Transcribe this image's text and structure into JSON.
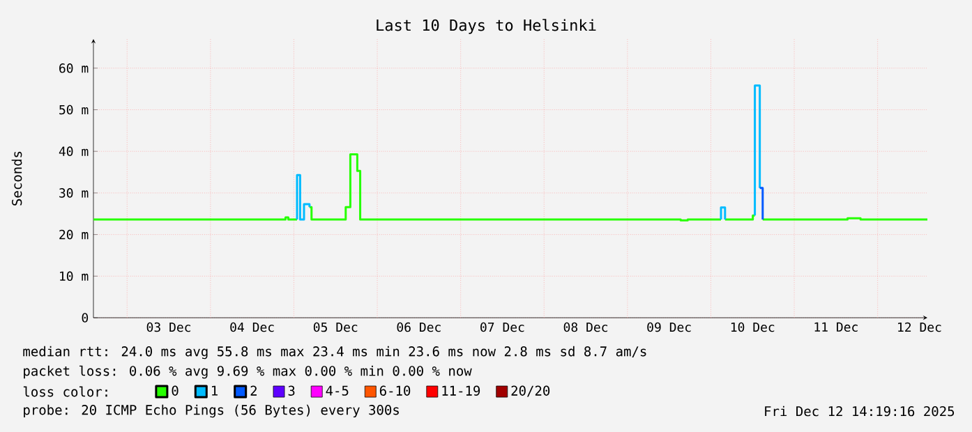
{
  "chart_data": {
    "type": "line",
    "title": "Last 10 Days to Helsinki",
    "ylabel": "Seconds",
    "legend_title": "loss color:",
    "x": [
      "2025-12-02T14:19",
      "2025-12-04T21:36",
      "2025-12-04T21:36",
      "2025-12-04T22:24",
      "2025-12-04T22:24",
      "2025-12-05T00:55",
      "2025-12-05T00:55",
      "2025-12-05T01:48",
      "2025-12-05T01:48",
      "2025-12-05T02:55",
      "2025-12-05T02:55",
      "2025-12-05T04:30",
      "2025-12-05T04:30",
      "2025-12-05T05:05",
      "2025-12-05T05:05",
      "2025-12-05T14:55",
      "2025-12-05T14:55",
      "2025-12-05T16:15",
      "2025-12-05T16:15",
      "2025-12-05T18:15",
      "2025-12-05T18:15",
      "2025-12-05T19:05",
      "2025-12-05T19:05",
      "2025-12-09T15:20",
      "2025-12-09T15:20",
      "2025-12-09T17:20",
      "2025-12-09T17:20",
      "2025-12-10T02:55",
      "2025-12-10T02:55",
      "2025-12-10T04:05",
      "2025-12-10T04:05",
      "2025-12-10T12:05",
      "2025-12-10T12:05",
      "2025-12-10T12:40",
      "2025-12-10T12:40",
      "2025-12-10T14:05",
      "2025-12-10T14:05",
      "2025-12-10T14:55",
      "2025-12-10T14:55",
      "2025-12-11T15:20",
      "2025-12-11T15:20",
      "2025-12-11T19:05",
      "2025-12-11T19:05",
      "2025-12-12T14:19"
    ],
    "series": [
      {
        "name": "0",
        "color": "#26ff00",
        "values": [
          23.6,
          23.6,
          24.1,
          24.1,
          23.6,
          23.6,
          null,
          null,
          null,
          null,
          null,
          null,
          26.6,
          26.6,
          23.6,
          23.6,
          26.6,
          26.6,
          39.3,
          39.3,
          35.3,
          35.3,
          23.6,
          23.6,
          23.4,
          23.4,
          23.6,
          23.6,
          null,
          null,
          23.6,
          23.6,
          24.6,
          24.6,
          null,
          null,
          null,
          null,
          23.6,
          23.6,
          23.9,
          23.9,
          23.6,
          23.6
        ]
      },
      {
        "name": "1",
        "color": "#00bbff",
        "values": [
          null,
          null,
          null,
          null,
          null,
          23.6,
          34.3,
          34.3,
          23.6,
          23.6,
          27.3,
          27.3,
          26.6,
          null,
          null,
          null,
          null,
          null,
          null,
          null,
          null,
          null,
          null,
          null,
          null,
          null,
          null,
          23.6,
          26.5,
          26.5,
          23.6,
          null,
          null,
          24.6,
          55.8,
          55.8,
          31.2,
          null,
          null,
          null,
          null,
          null,
          null,
          null
        ]
      },
      {
        "name": "2",
        "color": "#0059ff",
        "values": [
          null,
          null,
          null,
          null,
          null,
          null,
          null,
          null,
          null,
          null,
          null,
          null,
          null,
          null,
          null,
          null,
          null,
          null,
          null,
          null,
          null,
          null,
          null,
          null,
          null,
          null,
          null,
          null,
          null,
          null,
          null,
          null,
          null,
          null,
          null,
          null,
          31.2,
          31.2,
          23.6,
          null,
          null,
          null,
          null,
          null
        ]
      },
      {
        "name": "3",
        "color": "#5e00ff",
        "values": [
          null,
          null,
          null,
          null,
          null,
          null,
          null,
          null,
          null,
          null,
          null,
          null,
          null,
          null,
          null,
          null,
          null,
          null,
          null,
          null,
          null,
          null,
          null,
          null,
          null,
          null,
          null,
          null,
          null,
          null,
          null,
          null,
          null,
          null,
          null,
          null,
          null,
          null,
          null,
          null,
          null,
          null,
          null,
          null
        ]
      },
      {
        "name": "4-5",
        "color": "#ff00ff",
        "values": [
          null,
          null,
          null,
          null,
          null,
          null,
          null,
          null,
          null,
          null,
          null,
          null,
          null,
          null,
          null,
          null,
          null,
          null,
          null,
          null,
          null,
          null,
          null,
          null,
          null,
          null,
          null,
          null,
          null,
          null,
          null,
          null,
          null,
          null,
          null,
          null,
          null,
          null,
          null,
          null,
          null,
          null,
          null,
          null
        ]
      },
      {
        "name": "6-10",
        "color": "#ff5500",
        "values": [
          null,
          null,
          null,
          null,
          null,
          null,
          null,
          null,
          null,
          null,
          null,
          null,
          null,
          null,
          null,
          null,
          null,
          null,
          null,
          null,
          null,
          null,
          null,
          null,
          null,
          null,
          null,
          null,
          null,
          null,
          null,
          null,
          null,
          null,
          null,
          null,
          null,
          null,
          null,
          null,
          null,
          null,
          null,
          null
        ]
      },
      {
        "name": "11-19",
        "color": "#ff0000",
        "values": [
          null,
          null,
          null,
          null,
          null,
          null,
          null,
          null,
          null,
          null,
          null,
          null,
          null,
          null,
          null,
          null,
          null,
          null,
          null,
          null,
          null,
          null,
          null,
          null,
          null,
          null,
          null,
          null,
          null,
          null,
          null,
          null,
          null,
          null,
          null,
          null,
          null,
          null,
          null,
          null,
          null,
          null,
          null,
          null
        ]
      },
      {
        "name": "20/20",
        "color": "#a10000",
        "values": [
          null,
          null,
          null,
          null,
          null,
          null,
          null,
          null,
          null,
          null,
          null,
          null,
          null,
          null,
          null,
          null,
          null,
          null,
          null,
          null,
          null,
          null,
          null,
          null,
          null,
          null,
          null,
          null,
          null,
          null,
          null,
          null,
          null,
          null,
          null,
          null,
          null,
          null,
          null,
          null,
          null,
          null,
          null,
          null
        ]
      }
    ],
    "xlim": [
      "2025-12-02T14:19",
      "2025-12-12T14:19"
    ],
    "xticks": [
      {
        "value": "2025-12-03T00:00",
        "label": null
      },
      {
        "value": "2025-12-03T12:00",
        "label": "03 Dec"
      },
      {
        "value": "2025-12-04T00:00",
        "label": null
      },
      {
        "value": "2025-12-04T12:00",
        "label": "04 Dec"
      },
      {
        "value": "2025-12-05T00:00",
        "label": null
      },
      {
        "value": "2025-12-05T12:00",
        "label": "05 Dec"
      },
      {
        "value": "2025-12-06T00:00",
        "label": null
      },
      {
        "value": "2025-12-06T12:00",
        "label": "06 Dec"
      },
      {
        "value": "2025-12-07T00:00",
        "label": null
      },
      {
        "value": "2025-12-07T12:00",
        "label": "07 Dec"
      },
      {
        "value": "2025-12-08T00:00",
        "label": null
      },
      {
        "value": "2025-12-08T12:00",
        "label": "08 Dec"
      },
      {
        "value": "2025-12-09T00:00",
        "label": null
      },
      {
        "value": "2025-12-09T12:00",
        "label": "09 Dec"
      },
      {
        "value": "2025-12-10T00:00",
        "label": null
      },
      {
        "value": "2025-12-10T12:00",
        "label": "10 Dec"
      },
      {
        "value": "2025-12-11T00:00",
        "label": null
      },
      {
        "value": "2025-12-11T12:00",
        "label": "11 Dec"
      },
      {
        "value": "2025-12-12T00:00",
        "label": null
      },
      {
        "value": "2025-12-12T12:00",
        "label": "12 Dec"
      }
    ],
    "ylim": [
      0,
      67
    ],
    "yticks": [
      0,
      {
        "value": 10,
        "label": "10 m"
      },
      {
        "value": 20,
        "label": "20 m"
      },
      {
        "value": 30,
        "label": "30 m"
      },
      {
        "value": 40,
        "label": "40 m"
      },
      {
        "value": 50,
        "label": "50 m"
      },
      {
        "value": 60,
        "label": "60 m"
      }
    ],
    "grid": true,
    "legend": "bottom",
    "marker": "none",
    "line_style": "solid",
    "annotations": [
      "median rtt: 24.0 ms avg 55.8 ms max 23.4 ms min 23.6 ms now 2.8 ms sd 8.7 am/s",
      "packet loss: 0.06 % avg 9.69 % max 0.00 % min 0.00 % now",
      "probe: 20 ICMP Echo Pings (56 Bytes) every 300s",
      "Fri Dec 12 14:19:16 2025"
    ]
  }
}
